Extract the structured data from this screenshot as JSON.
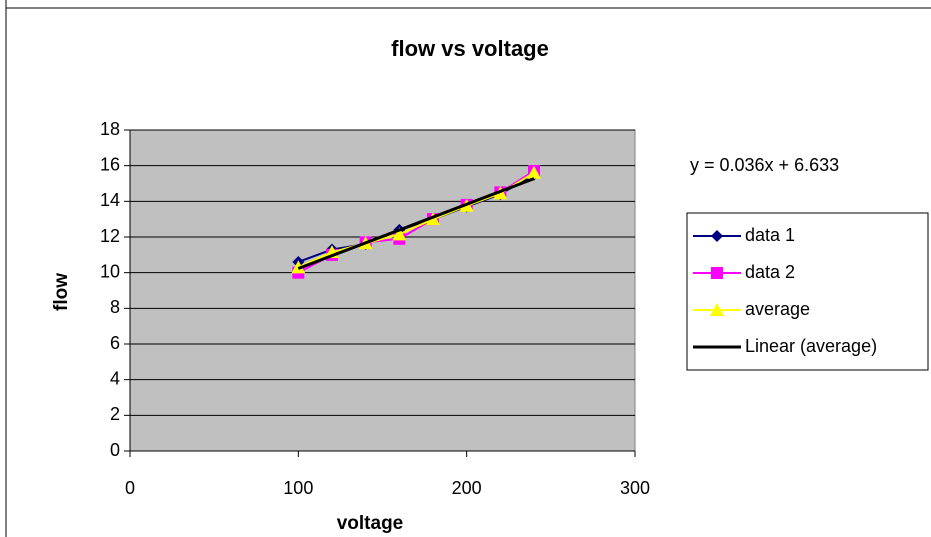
{
  "chart_data": {
    "type": "line",
    "title": "flow vs voltage",
    "x_label": "voltage",
    "y_label": "flow",
    "x": [
      100,
      120,
      140,
      160,
      180,
      200,
      220,
      240
    ],
    "series": [
      {
        "name": "data 1",
        "color": "#000080",
        "marker": "diamond",
        "values": [
          10.6,
          11.3,
          11.6,
          12.4,
          13.0,
          13.7,
          14.4,
          15.5
        ]
      },
      {
        "name": "data 2",
        "color": "#ff00ff",
        "marker": "square",
        "values": [
          10.0,
          11.0,
          11.7,
          11.9,
          13.0,
          13.8,
          14.5,
          15.7
        ]
      },
      {
        "name": "average",
        "color": "#ffff00",
        "marker": "triangle",
        "values": [
          10.3,
          11.15,
          11.65,
          12.15,
          13.0,
          13.75,
          14.45,
          15.6
        ]
      }
    ],
    "trendline": {
      "name": "Linear (average)",
      "color": "#000000",
      "x": [
        100,
        240
      ],
      "values": [
        10.233,
        15.273
      ]
    },
    "equation": "y = 0.036x + 6.633",
    "xlim": [
      0,
      300
    ],
    "xticks": [
      0,
      100,
      200,
      300
    ],
    "ylim": [
      0,
      18
    ],
    "yticks": [
      0,
      2,
      4,
      6,
      8,
      10,
      12,
      14,
      16,
      18
    ],
    "grid": true,
    "plot_background": "#c0c0c0",
    "legend": "right"
  }
}
